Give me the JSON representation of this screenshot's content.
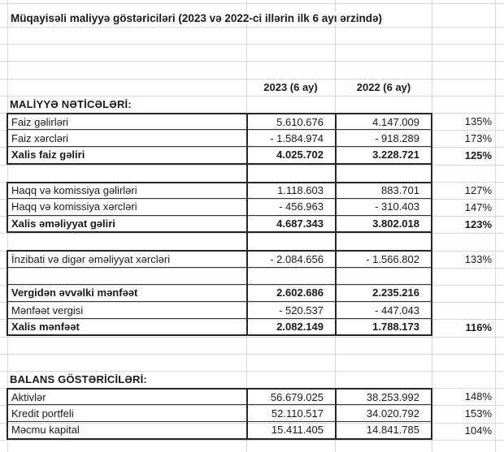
{
  "sheet": {
    "text_color": "#1a1a1a",
    "gridline_color": "#d9d9d9",
    "border_color": "#262626",
    "rows": [
      {
        "type": "title",
        "label": "Müqayisəli maliyyə göstəriciləri (2023 və 2022-ci illərin ilk 6 ayı ərzində)"
      },
      {
        "type": "blank"
      },
      {
        "type": "blank"
      },
      {
        "type": "blank"
      },
      {
        "type": "header",
        "v2023": "2023 (6 ay)",
        "v2022": "2022 (6 ay)"
      },
      {
        "type": "section",
        "label": "MALİYYƏ NƏTİCƏLƏRİ:"
      },
      {
        "type": "data",
        "pos": "first",
        "label": "Faiz gəlirləri",
        "v2023": "5.610.676",
        "v2022": "4.147.009",
        "pct": "135%"
      },
      {
        "type": "data",
        "label": "Faiz xərcləri",
        "v2023": "- 1.584.974",
        "v2022": "- 918.289",
        "pct": "173%"
      },
      {
        "type": "data",
        "pos": "last",
        "bold": true,
        "label": "Xalis faiz gəliri",
        "v2023": "4.025.702",
        "v2022": "3.228.721",
        "pct": "125%"
      },
      {
        "type": "gap-bordered"
      },
      {
        "type": "data",
        "pos": "first",
        "label": "Haqq və komissiya gəlirləri",
        "v2023": "1.118.603",
        "v2022": "883.701",
        "pct": "127%"
      },
      {
        "type": "data",
        "label": "Haqq və komissiya xərcləri",
        "v2023": "- 456.963",
        "v2022": "- 310.403",
        "pct": "147%"
      },
      {
        "type": "data",
        "pos": "last",
        "bold": true,
        "label": "Xalis əməliyyat gəliri",
        "v2023": "4.687.343",
        "v2022": "3.802.018",
        "pct": "123%"
      },
      {
        "type": "gap-bordered"
      },
      {
        "type": "data",
        "pos": "first",
        "label": "İnzibati və digər əməliyyat xərcləri",
        "v2023": "- 2.084.656",
        "v2022": "- 1.566.802",
        "pct": "133%"
      },
      {
        "type": "empty-bordered"
      },
      {
        "type": "data",
        "bold": true,
        "label": "Vergidən əvvəlki mənfəət",
        "v2023": "2.602.686",
        "v2022": "2.235.216",
        "pct": ""
      },
      {
        "type": "data",
        "label": "Mənfəət vergisi",
        "v2023": "- 520.537",
        "v2022": "- 447.043",
        "pct": ""
      },
      {
        "type": "data",
        "pos": "last",
        "bold": true,
        "label": "Xalis mənfəət",
        "v2023": "2.082.149",
        "v2022": "1.788.173",
        "pct": "116%"
      },
      {
        "type": "blank"
      },
      {
        "type": "blank"
      },
      {
        "type": "section",
        "label": "BALANS GÖSTƏRİCİLƏRİ:"
      },
      {
        "type": "data",
        "pos": "first",
        "label": "Aktivlər",
        "v2023": "56.679.025",
        "v2022": "38.253.992",
        "pct": "148%"
      },
      {
        "type": "data",
        "label": "Kredit portfeli",
        "v2023": "52.110.517",
        "v2022": "34.020.792",
        "pct": "153%"
      },
      {
        "type": "data",
        "pos": "last",
        "label": "Məcmu kapital",
        "v2023": "15.411.405",
        "v2022": "14.841.785",
        "pct": "104%"
      },
      {
        "type": "blank"
      }
    ]
  }
}
